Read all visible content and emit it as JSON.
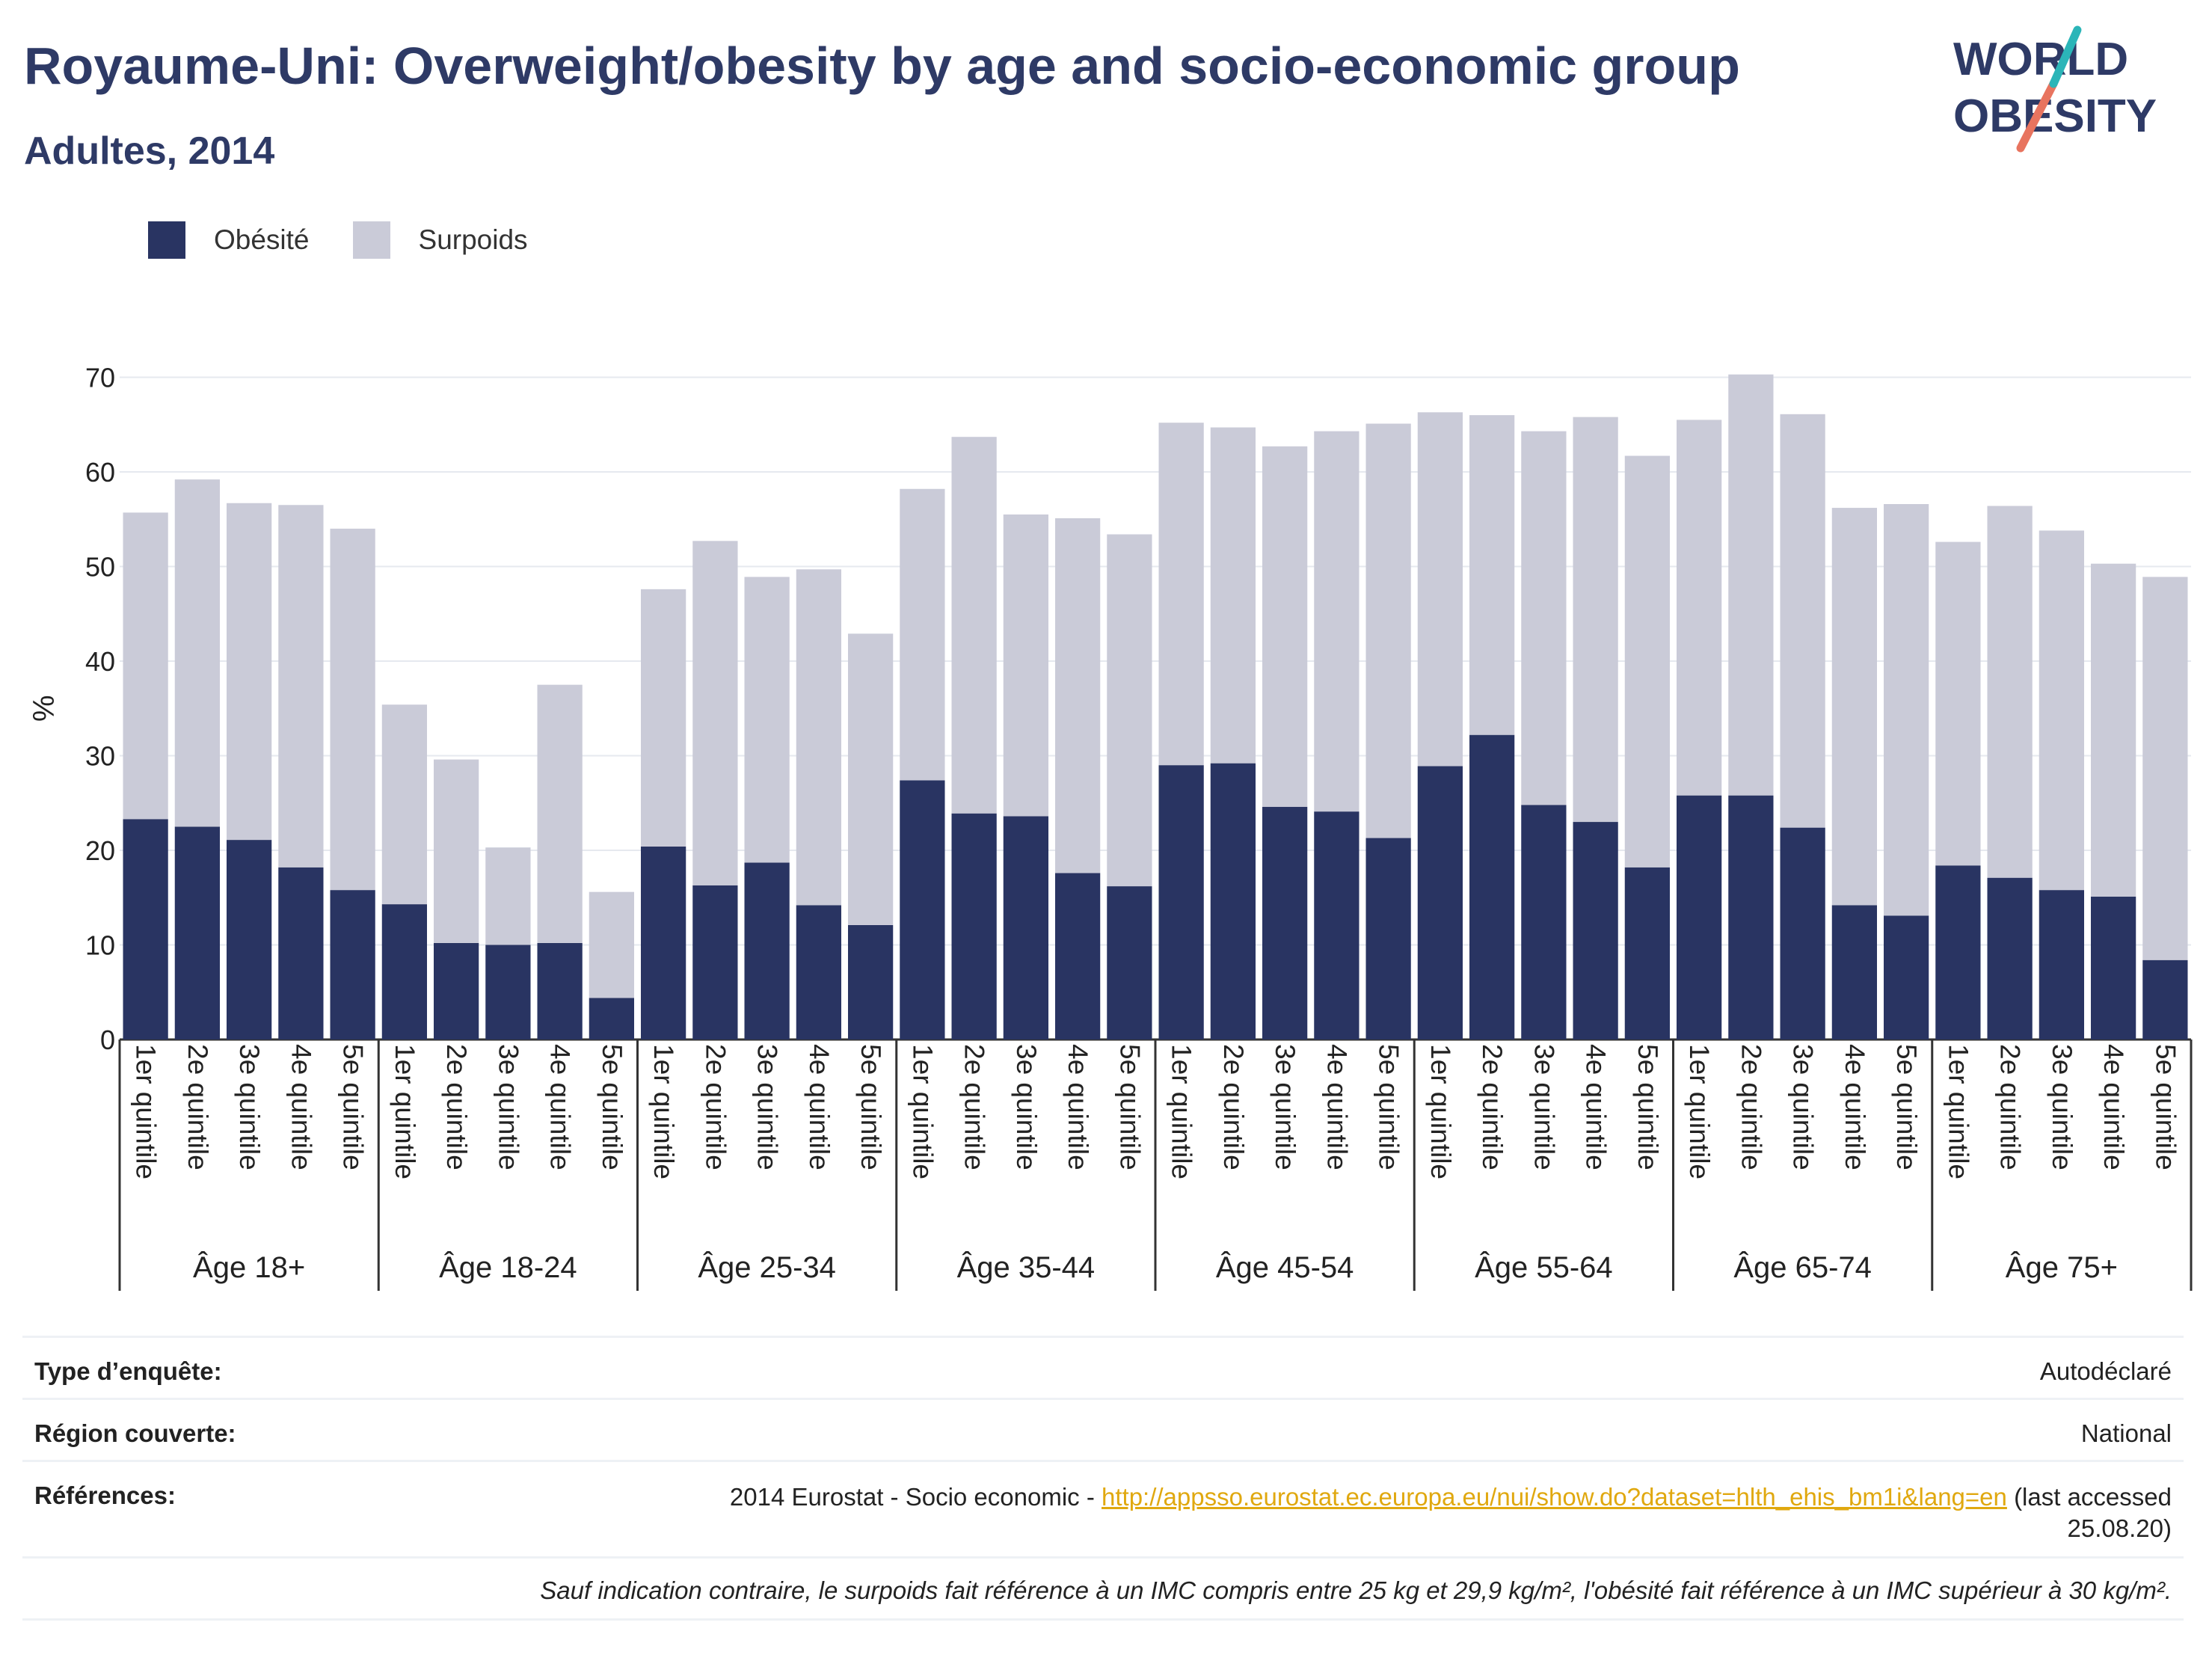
{
  "header": {
    "title": "Royaume-Uni: Overweight/obesity by age and socio-economic group",
    "subtitle": "Adultes, 2014"
  },
  "logo": {
    "line1": "WORLD",
    "line2": "OBESITY"
  },
  "colors": {
    "obesity": "#293462",
    "overweight": "#cacbd8",
    "title": "#2e3a66",
    "link": "#e0a80f",
    "logo_teal": "#2bb5b8",
    "logo_coral": "#e8745f"
  },
  "chart_data": {
    "type": "bar",
    "stacked": true,
    "ylabel": "%",
    "ylim": [
      0,
      70
    ],
    "yticks": [
      0,
      10,
      20,
      30,
      40,
      50,
      60,
      70
    ],
    "grid": true,
    "legend_position": "top-left",
    "groups": [
      "Âge 18+",
      "Âge 18-24",
      "Âge 25-34",
      "Âge 35-44",
      "Âge 45-54",
      "Âge 55-64",
      "Âge 65-74",
      "Âge 75+"
    ],
    "categories": [
      "1er quintile",
      "2e quintile",
      "3e quintile",
      "4e quintile",
      "5e quintile"
    ],
    "series": [
      {
        "name": "Obésité",
        "values": [
          [
            23.3,
            22.5,
            21.1,
            18.2,
            15.8
          ],
          [
            14.3,
            10.2,
            10.0,
            10.2,
            4.4
          ],
          [
            20.4,
            16.3,
            18.7,
            14.2,
            12.1
          ],
          [
            27.4,
            23.9,
            23.6,
            17.6,
            16.2
          ],
          [
            29.0,
            29.2,
            24.6,
            24.1,
            21.3
          ],
          [
            28.9,
            32.2,
            24.8,
            23.0,
            18.2
          ],
          [
            25.8,
            25.8,
            22.4,
            14.2,
            13.1
          ],
          [
            18.4,
            17.1,
            15.8,
            15.1,
            8.4
          ]
        ]
      },
      {
        "name": "Surpoids",
        "values": [
          [
            32.4,
            36.7,
            35.6,
            38.3,
            38.2
          ],
          [
            21.1,
            19.4,
            10.3,
            27.3,
            11.2
          ],
          [
            27.2,
            36.4,
            30.2,
            35.5,
            30.8
          ],
          [
            30.8,
            39.8,
            31.9,
            37.5,
            37.2
          ],
          [
            36.2,
            35.5,
            38.1,
            40.2,
            43.8
          ],
          [
            37.4,
            33.8,
            39.5,
            42.8,
            43.5
          ],
          [
            39.7,
            44.5,
            43.7,
            42.0,
            43.5
          ],
          [
            34.2,
            39.3,
            38.0,
            35.2,
            40.5
          ]
        ]
      }
    ]
  },
  "info": {
    "survey_type_label": "Type d’enquête:",
    "survey_type_value": "Autodéclaré",
    "region_label": "Région couverte:",
    "region_value": "National",
    "references_label": "Références:",
    "references_prefix": "2014 Eurostat - Socio economic -",
    "references_link": "http://appsso.eurostat.ec.europa.eu/nui/show.do?dataset=hlth_ehis_bm1i&lang=en",
    "references_suffix_1": "(last accessed",
    "references_suffix_2": "25.08.20)",
    "footnote": "Sauf indication contraire, le surpoids fait référence à un IMC compris entre 25 kg et 29,9 kg/m², l'obésité fait référence à un IMC supérieur à 30 kg/m²."
  }
}
